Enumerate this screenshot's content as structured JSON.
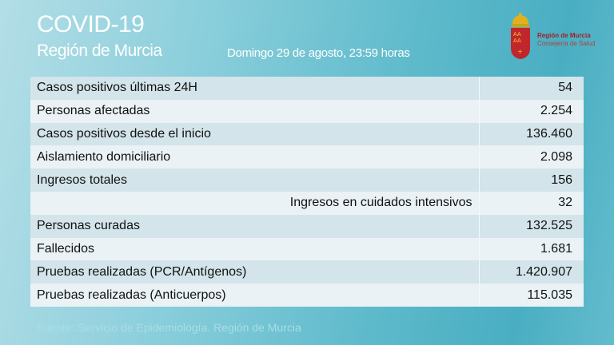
{
  "header": {
    "title": "COVID-19",
    "subtitle": "Región de Murcia",
    "date": "Domingo 29 de agosto, 23:59 horas"
  },
  "logo": {
    "line1": "Región de Murcia",
    "line2": "Consejería de Salud",
    "colors": {
      "shield": "#c0262b",
      "crown": "#e0b020"
    }
  },
  "rows": [
    {
      "label": "Casos positivos últimas 24H",
      "value": "54"
    },
    {
      "label": "Personas afectadas",
      "value": "2.254"
    },
    {
      "label": "Casos positivos desde el inicio",
      "value": "136.460"
    },
    {
      "label": "Aislamiento domiciliario",
      "value": "2.098"
    },
    {
      "label": "Ingresos totales",
      "value": "156"
    },
    {
      "label": "Ingresos en cuidados intensivos",
      "value": "32"
    },
    {
      "label": "Personas curadas",
      "value": "132.525"
    },
    {
      "label": "Fallecidos",
      "value": "1.681"
    },
    {
      "label": "Pruebas realizadas (PCR/Antígenos)",
      "value": "1.420.907"
    },
    {
      "label": "Pruebas realizadas (Anticuerpos)",
      "value": "115.035"
    }
  ],
  "footer": "Fuente: Servicio de Epidemiología.  Región de Murcia"
}
